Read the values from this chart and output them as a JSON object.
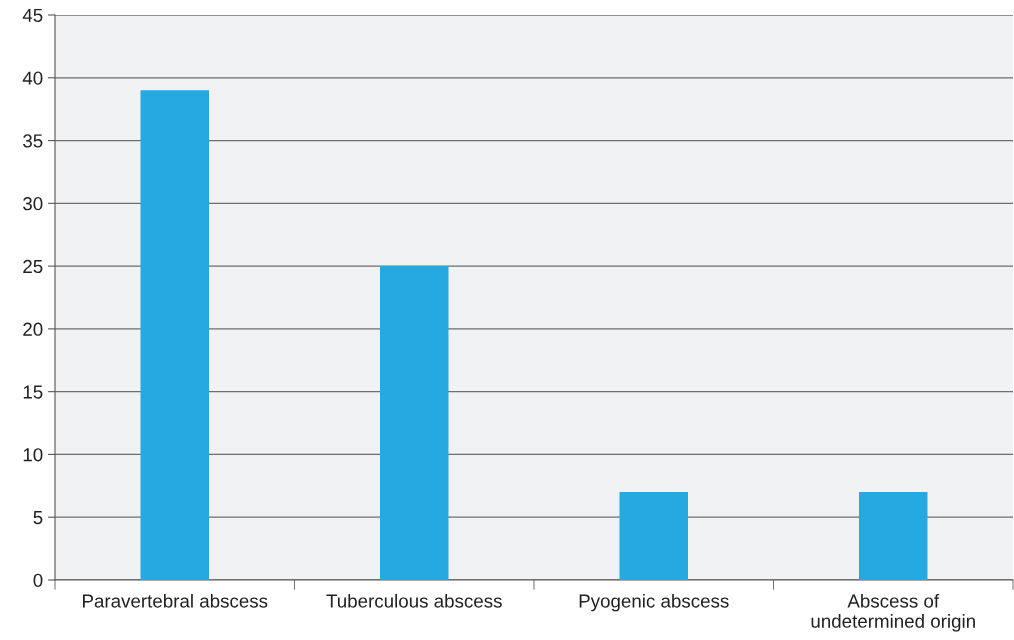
{
  "chart_data": {
    "type": "bar",
    "categories": [
      "Paravertebral abscess",
      "Tuberculous abscess",
      "Pyogenic abscess",
      "Abscess of\nundetermined origin"
    ],
    "values": [
      39,
      25,
      7,
      7
    ],
    "color": "#25a9e0",
    "ylim": [
      0,
      45
    ],
    "yticks": [
      0,
      5,
      10,
      15,
      20,
      25,
      30,
      35,
      40,
      45
    ],
    "grid": "y"
  }
}
